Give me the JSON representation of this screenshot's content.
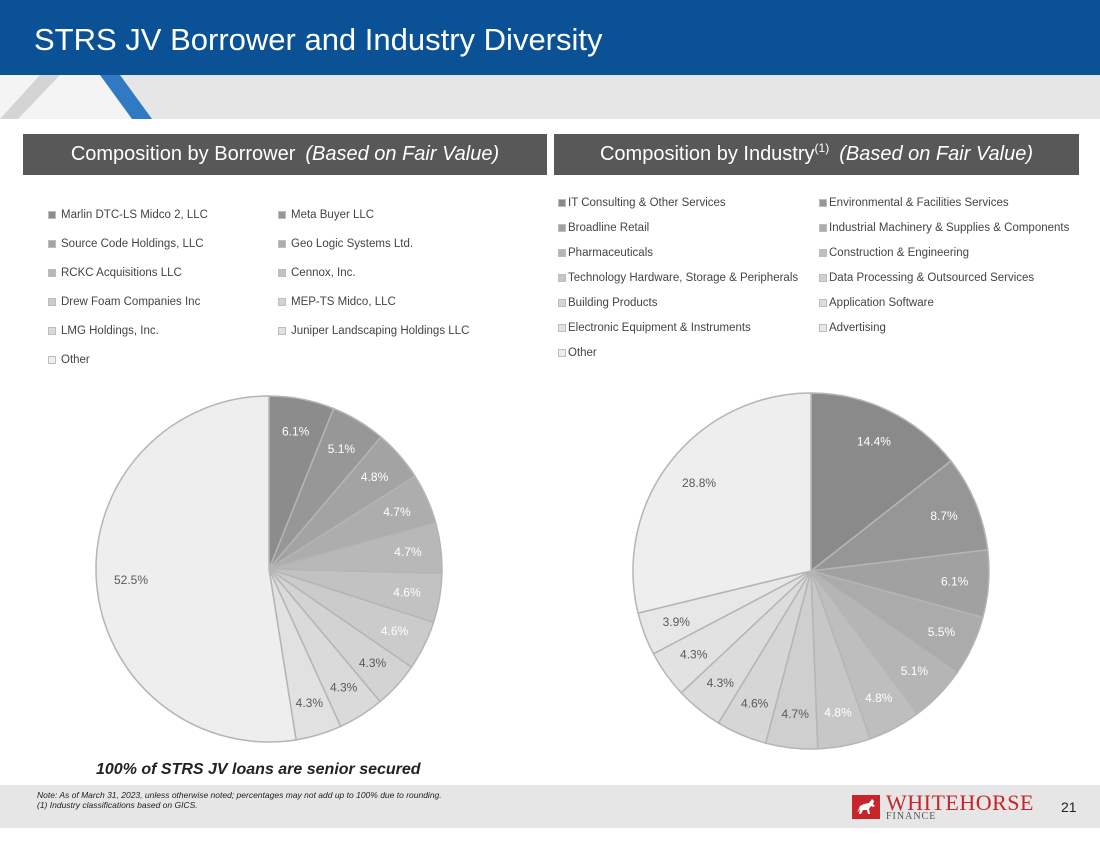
{
  "title": "STRS JV Borrower and Industry Diversity",
  "left_header": {
    "main": "Composition by Borrower",
    "italic": "(Based on Fair Value)"
  },
  "right_header": {
    "main": "Composition by Industry",
    "sup": "(1)",
    "italic": "(Based on Fair Value)"
  },
  "senior_secured_note": "100% of STRS JV loans are senior secured",
  "note_line1": "Note: As of March 31, 2023, unless otherwise noted; percentages may not add up to 100% due to rounding.",
  "note_line2": "(1)    Industry classifications based on GICS.",
  "logo": {
    "top": "WHITEHORSE",
    "bottom": "FINANCE"
  },
  "page_number": "21",
  "colors": {
    "title_bar": "#0b5196",
    "header": "#585858",
    "logo": "#c8242b"
  },
  "chart_data": [
    {
      "type": "pie",
      "title": "Composition by Borrower (Based on Fair Value)",
      "legend_position": "top",
      "categories": [
        "Marlin DTC-LS Midco 2, LLC",
        "Meta Buyer LLC",
        "Source Code Holdings, LLC",
        "Geo Logic Systems Ltd.",
        "RCKC Acquisitions LLC",
        "Cennox, Inc.",
        "Drew Foam Companies Inc",
        "MEP-TS Midco, LLC",
        "LMG Holdings, Inc.",
        "Juniper Landscaping Holdings LLC",
        "Other"
      ],
      "values": [
        6.1,
        5.1,
        4.8,
        4.7,
        4.7,
        4.6,
        4.6,
        4.3,
        4.3,
        4.3,
        52.5
      ],
      "labels": [
        "6.1%",
        "5.1%",
        "4.8%",
        "4.7%",
        "4.7%",
        "4.6%",
        "4.6%",
        "4.3%",
        "4.3%",
        "4.3%",
        "52.5%"
      ],
      "colors": [
        "#8c8c8c",
        "#979797",
        "#a3a3a3",
        "#adadad",
        "#b8b8b8",
        "#c2c2c2",
        "#cbcbcb",
        "#d3d3d3",
        "#dadada",
        "#e1e1e1",
        "#eeeeee"
      ],
      "label_colors": [
        "#ffffff",
        "#ffffff",
        "#ffffff",
        "#ffffff",
        "#ffffff",
        "#ffffff",
        "#ffffff",
        "#5a5a5a",
        "#5a5a5a",
        "#5a5a5a",
        "#5a5a5a"
      ]
    },
    {
      "type": "pie",
      "title": "Composition by Industry (Based on Fair Value)",
      "legend_position": "top",
      "categories": [
        "IT Consulting & Other Services",
        "Environmental & Facilities Services",
        "Broadline Retail",
        "Industrial Machinery & Supplies & Components",
        "Pharmaceuticals",
        "Construction & Engineering",
        "Technology Hardware, Storage & Peripherals",
        "Data Processing & Outsourced Services",
        "Building Products",
        "Application Software",
        "Electronic Equipment & Instruments",
        "Advertising",
        "Other"
      ],
      "values": [
        14.4,
        8.7,
        6.1,
        5.5,
        5.1,
        4.8,
        4.8,
        4.7,
        4.6,
        4.3,
        4.3,
        3.9,
        28.8
      ],
      "labels": [
        "14.4%",
        "8.7%",
        "6.1%",
        "5.5%",
        "5.1%",
        "4.8%",
        "4.8%",
        "4.7%",
        "4.6%",
        "4.3%",
        "4.3%",
        "3.9%",
        "28.8%"
      ],
      "colors": [
        "#8a8a8a",
        "#969696",
        "#a1a1a1",
        "#ababab",
        "#b5b5b5",
        "#bebebe",
        "#c7c7c7",
        "#cfcfcf",
        "#d6d6d6",
        "#dcdcdc",
        "#e2e2e2",
        "#e7e7e7",
        "#eeeeee"
      ],
      "label_colors": [
        "#ffffff",
        "#ffffff",
        "#ffffff",
        "#ffffff",
        "#ffffff",
        "#ffffff",
        "#ffffff",
        "#5a5a5a",
        "#5a5a5a",
        "#5a5a5a",
        "#5a5a5a",
        "#5a5a5a",
        "#5a5a5a"
      ]
    }
  ]
}
